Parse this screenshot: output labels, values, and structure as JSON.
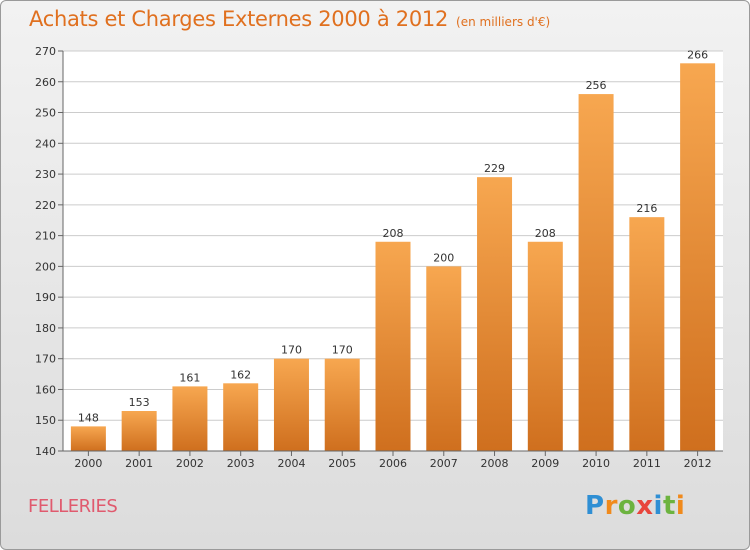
{
  "chart_title": "Achats et Charges Externes 2000 à 2012",
  "chart_subtitle": "(en milliers d'€)",
  "commune_name": "FELLERIES",
  "logo_text": "Proxiti",
  "colors": {
    "bar_light": "#f7a750",
    "bar_dark": "#cf6f1e",
    "title": "#e0701f",
    "commune": "#e05a6e"
  },
  "chart_data": {
    "type": "bar",
    "title": "Achats et Charges Externes 2000 à 2012",
    "subtitle": "(en milliers d'€)",
    "categories": [
      "2000",
      "2001",
      "2002",
      "2003",
      "2004",
      "2005",
      "2006",
      "2007",
      "2008",
      "2009",
      "2010",
      "2011",
      "2012"
    ],
    "values": [
      148,
      153,
      161,
      162,
      170,
      170,
      208,
      200,
      229,
      208,
      256,
      216,
      266
    ],
    "ylim": [
      140,
      270
    ],
    "yticks": [
      140,
      150,
      160,
      170,
      180,
      190,
      200,
      210,
      220,
      230,
      240,
      250,
      260,
      270
    ],
    "grid": true,
    "data_labels": true
  }
}
